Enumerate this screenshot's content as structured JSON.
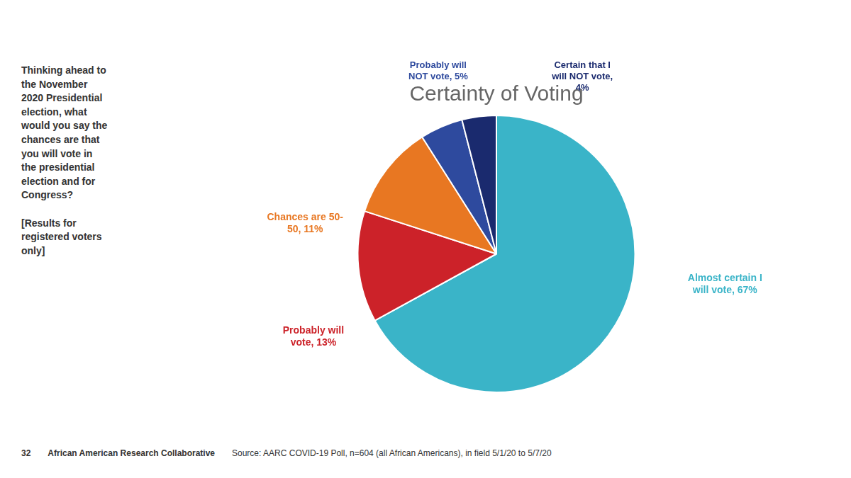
{
  "chart_data": {
    "type": "pie",
    "title": "Certainty of Voting",
    "values": [
      67,
      13,
      11,
      5,
      4
    ],
    "value_labels": [
      "Almost certain I\nwill vote, 67%",
      "Probably will\nvote, 13%",
      "Chances are 50-\n50, 11%",
      "Probably will\nNOT vote, 5%",
      "Certain that I\nwill NOT vote,\n4%"
    ],
    "colors": [
      "#3ab4c8",
      "#cc2229",
      "#e87722",
      "#2e4a9e",
      "#1a2a6e"
    ],
    "annotations": [
      "Thinking ahead to\nthe November\n2020 Presidential\nelection, what\nwould you say the\nchances are that\nyou will vote in\nthe presidential\nelection and for\nCongress?\n\n[Results for\nregistered voters\nonly]",
      "32",
      "African American Research Collaborative",
      "Source: AARC COVID-19 Poll, n=604 (all African Americans), in field 5/1/20 to 5/7/20"
    ]
  }
}
